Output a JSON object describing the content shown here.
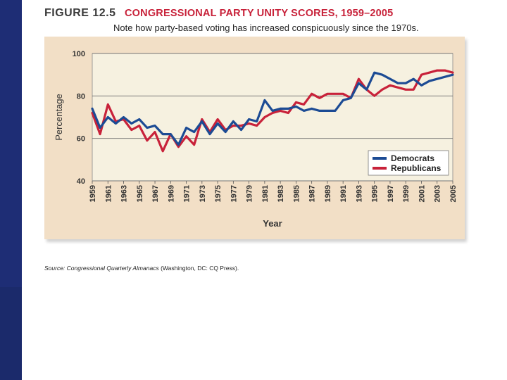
{
  "figure": {
    "number": "FIGURE 12.5",
    "title": "CONGRESSIONAL PARTY UNITY SCORES, 1959–2005",
    "subtitle": "Note how party-based voting has increased conspicuously since the 1970s."
  },
  "source": {
    "label": "Source:",
    "italic": "Congressional Quarterly Almanacs",
    "rest": " (Washington, DC: CQ Press)."
  },
  "colors": {
    "democrats": "#1c4b94",
    "republicans": "#c8223a",
    "plot_bg": "#f6f1e0",
    "panel_bg": "#f2dfc6"
  },
  "chart_data": {
    "type": "line",
    "xlabel": "Year",
    "ylabel": "Percentage",
    "ylim": [
      40,
      100
    ],
    "xlim": [
      1959,
      2005
    ],
    "yticks": [
      40,
      60,
      80,
      100
    ],
    "xticks": [
      1959,
      1961,
      1963,
      1965,
      1967,
      1969,
      1971,
      1973,
      1975,
      1977,
      1979,
      1981,
      1983,
      1985,
      1987,
      1989,
      1991,
      1993,
      1995,
      1997,
      1999,
      2001,
      2003,
      2005
    ],
    "x": [
      1959,
      1960,
      1961,
      1962,
      1963,
      1964,
      1965,
      1966,
      1967,
      1968,
      1969,
      1970,
      1971,
      1972,
      1973,
      1974,
      1975,
      1976,
      1977,
      1978,
      1979,
      1980,
      1981,
      1982,
      1983,
      1984,
      1985,
      1986,
      1987,
      1988,
      1989,
      1990,
      1991,
      1992,
      1993,
      1994,
      1995,
      1996,
      1997,
      1998,
      1999,
      2000,
      2001,
      2002,
      2003,
      2004,
      2005
    ],
    "legend": "bottom-right",
    "series": [
      {
        "name": "Democrats",
        "values": [
          74,
          65,
          70,
          67,
          70,
          67,
          69,
          65,
          66,
          62,
          62,
          57,
          65,
          63,
          68,
          62,
          67,
          63,
          68,
          64,
          69,
          68,
          78,
          73,
          74,
          74,
          75,
          73,
          74,
          73,
          73,
          73,
          78,
          79,
          86,
          83,
          91,
          90,
          88,
          86,
          86,
          88,
          85,
          87,
          88,
          89,
          90
        ]
      },
      {
        "name": "Republicans",
        "values": [
          72,
          62,
          76,
          68,
          69,
          64,
          66,
          59,
          63,
          54,
          62,
          56,
          61,
          57,
          69,
          63,
          69,
          64,
          66,
          66,
          67,
          66,
          70,
          72,
          73,
          72,
          77,
          76,
          81,
          79,
          81,
          81,
          81,
          79,
          88,
          83,
          80,
          83,
          85,
          84,
          83,
          83,
          90,
          91,
          92,
          92,
          91
        ]
      }
    ]
  }
}
